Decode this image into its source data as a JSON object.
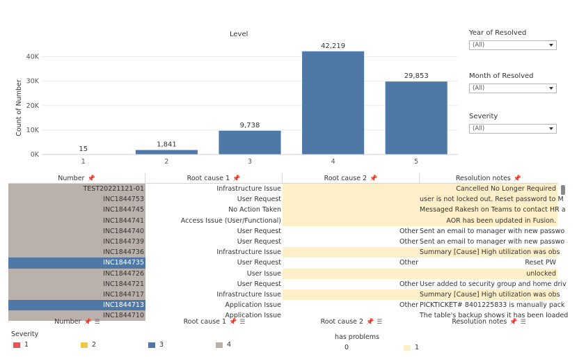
{
  "chart_data": {
    "type": "bar",
    "title": "Level",
    "categories": [
      "1",
      "2",
      "3",
      "4",
      "5"
    ],
    "values": [
      15,
      1841,
      9738,
      42219,
      29853
    ],
    "value_labels": [
      "15",
      "1,841",
      "9,738",
      "42,219",
      "29,853"
    ],
    "ylabel": "Count of Number",
    "xlabel": "",
    "ylim": [
      0,
      45000
    ],
    "yticks": [
      0,
      10000,
      20000,
      30000,
      40000
    ],
    "ytick_labels": [
      "0K",
      "10K",
      "20K",
      "30K",
      "40K"
    ],
    "grid": true,
    "bar_color": "#4e79a7"
  },
  "filters": [
    {
      "label": "Year of Resolved",
      "value": "(All)"
    },
    {
      "label": "Month of Resolved",
      "value": "(All)"
    },
    {
      "label": "Severity",
      "value": "(All)"
    }
  ],
  "table": {
    "headers": [
      "Number",
      "Root cause 1",
      "Root cause 2",
      "Resolution notes"
    ],
    "rows": [
      {
        "number": "TEST20221121-01",
        "rc1": "Infrastructure Issue",
        "rc2": "",
        "notes": "Cancelled No Longer Required",
        "severity": 4,
        "problem": 1
      },
      {
        "number": "INC1844753",
        "rc1": "User Request",
        "rc2": "",
        "notes": "user is not locked out.  Reset password to M",
        "severity": 4,
        "problem": 1
      },
      {
        "number": "INC1844745",
        "rc1": "No Action Taken",
        "rc2": "",
        "notes": "Messaged Rakesh on Teams to contact HR a",
        "severity": 4,
        "problem": 1
      },
      {
        "number": "INC1844741",
        "rc1": "Access Issue (User/Functional)",
        "rc2": "",
        "notes": "AOR has been updated in Fusion.",
        "severity": 4,
        "problem": 1
      },
      {
        "number": "INC1844740",
        "rc1": "User Request",
        "rc2": "Other",
        "notes": "Sent an email to manager with new passwo",
        "severity": 4,
        "problem": 0
      },
      {
        "number": "INC1844739",
        "rc1": "User Request",
        "rc2": "Other",
        "notes": "Sent an email to manager with new passwo",
        "severity": 4,
        "problem": 0
      },
      {
        "number": "INC1844736",
        "rc1": "Infrastructure Issue",
        "rc2": "",
        "notes": "Summary [Cause] High utilization was obs",
        "severity": 4,
        "problem": 1
      },
      {
        "number": "INC1844735",
        "rc1": "User Request",
        "rc2": "Other",
        "notes": "Reset PW",
        "severity": 3,
        "problem": 0
      },
      {
        "number": "INC1844726",
        "rc1": "User Issue",
        "rc2": "",
        "notes": "unlocked",
        "severity": 4,
        "problem": 1
      },
      {
        "number": "INC1844721",
        "rc1": "User Request",
        "rc2": "Other",
        "notes": "User added to security group and home driv",
        "severity": 4,
        "problem": 0
      },
      {
        "number": "INC1844717",
        "rc1": "Infrastructure Issue",
        "rc2": "",
        "notes": "Summary [Cause] High utilization was obs",
        "severity": 4,
        "problem": 1
      },
      {
        "number": "INC1844713",
        "rc1": "Application Issue",
        "rc2": "Other",
        "notes": "PICKTICKET# 8401225833 is manually pack",
        "severity": 3,
        "problem": 0
      },
      {
        "number": "INC1844710",
        "rc1": "Application Issue",
        "rc2": "",
        "notes": "The table's backup shows it has been loaded",
        "severity": 4,
        "problem": 0
      }
    ]
  },
  "legend_severity": {
    "title": "Severity",
    "items": [
      {
        "label": "1",
        "color": "#e15759"
      },
      {
        "label": "2",
        "color": "#edc948"
      },
      {
        "label": "3",
        "color": "#4e79a7"
      },
      {
        "label": "4",
        "color": "#bab0ac"
      }
    ]
  },
  "legend_problems": {
    "title": "has problems",
    "items": [
      {
        "label": "0",
        "color": "#ffffff"
      },
      {
        "label": "1",
        "color": "#fdf0c8"
      }
    ]
  }
}
